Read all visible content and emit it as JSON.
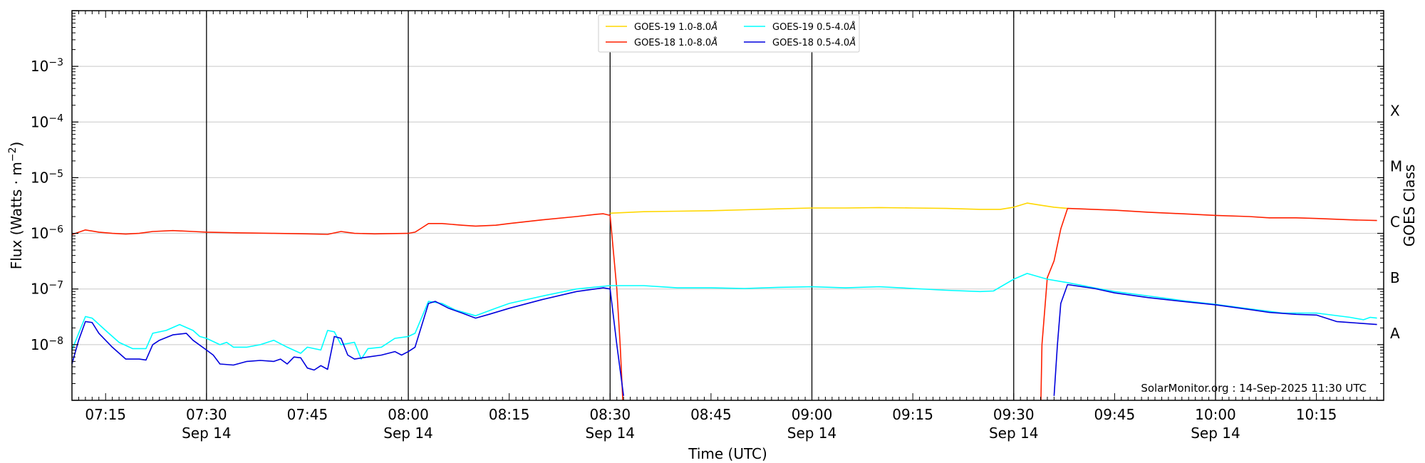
{
  "chart_data": {
    "type": "line",
    "xlabel": "Time (UTC)",
    "ylabel_main": "Flux (Watts · m",
    "ylabel_exp": "−2",
    "ylabel_close": ")",
    "y2label": "GOES Class",
    "y_scale": "log",
    "ylim": [
      1e-09,
      0.01
    ],
    "xlim": [
      "07:10",
      "10:25"
    ],
    "date": "Sep 14",
    "grid": "horizontal",
    "legend_position": "top-center",
    "credit": "SolarMonitor.org : 14-Sep-2025 11:30 UTC",
    "x_ticks": [
      "07:15",
      "07:30",
      "07:45",
      "08:00",
      "08:15",
      "08:30",
      "08:45",
      "09:00",
      "09:15",
      "09:30",
      "09:45",
      "10:00",
      "10:15"
    ],
    "x_major_ticks": [
      "07:30",
      "08:00",
      "08:30",
      "09:00",
      "09:30",
      "10:00"
    ],
    "x_major_sublabel": "Sep 14",
    "y_ticks": [
      {
        "exp": -8,
        "base": "10",
        "sup": "−8"
      },
      {
        "exp": -7,
        "base": "10",
        "sup": "−7"
      },
      {
        "exp": -6,
        "base": "10",
        "sup": "−6"
      },
      {
        "exp": -5,
        "base": "10",
        "sup": "−5"
      },
      {
        "exp": -4,
        "base": "10",
        "sup": "−4"
      },
      {
        "exp": -3,
        "base": "10",
        "sup": "−3"
      }
    ],
    "goes_classes": [
      {
        "label": "A",
        "flux": 1.6e-08
      },
      {
        "label": "B",
        "flux": 1.6e-07
      },
      {
        "label": "C",
        "flux": 1.6e-06
      },
      {
        "label": "M",
        "flux": 1.6e-05
      },
      {
        "label": "X",
        "flux": 0.00016
      }
    ],
    "series": [
      {
        "name": "GOES-19 1.0-8.0Å",
        "color": "#ffd700",
        "points": [
          [
            "08:30",
            2.3e-06
          ],
          [
            "08:35",
            2.45e-06
          ],
          [
            "08:40",
            2.5e-06
          ],
          [
            "08:45",
            2.55e-06
          ],
          [
            "08:50",
            2.65e-06
          ],
          [
            "08:55",
            2.75e-06
          ],
          [
            "09:00",
            2.85e-06
          ],
          [
            "09:05",
            2.85e-06
          ],
          [
            "09:10",
            2.9e-06
          ],
          [
            "09:15",
            2.85e-06
          ],
          [
            "09:20",
            2.8e-06
          ],
          [
            "09:25",
            2.7e-06
          ],
          [
            "09:28",
            2.7e-06
          ],
          [
            "09:30",
            2.95e-06
          ],
          [
            "09:32",
            3.5e-06
          ],
          [
            "09:34",
            3.2e-06
          ],
          [
            "09:36",
            2.95e-06
          ],
          [
            "09:38",
            2.8e-06
          ]
        ]
      },
      {
        "name": "GOES-18 1.0-8.0Å",
        "color": "#ff2000",
        "points": [
          [
            "07:10",
            9.5e-07
          ],
          [
            "07:12",
            1.15e-06
          ],
          [
            "07:14",
            1.05e-06
          ],
          [
            "07:16",
            1e-06
          ],
          [
            "07:18",
            9.7e-07
          ],
          [
            "07:20",
            1e-06
          ],
          [
            "07:22",
            1.08e-06
          ],
          [
            "07:25",
            1.12e-06
          ],
          [
            "07:28",
            1.08e-06
          ],
          [
            "07:30",
            1.05e-06
          ],
          [
            "07:35",
            1.02e-06
          ],
          [
            "07:40",
            1e-06
          ],
          [
            "07:45",
            9.8e-07
          ],
          [
            "07:48",
            9.6e-07
          ],
          [
            "07:50",
            1.08e-06
          ],
          [
            "07:52",
            1e-06
          ],
          [
            "07:55",
            9.8e-07
          ],
          [
            "08:00",
            1e-06
          ],
          [
            "08:01",
            1.05e-06
          ],
          [
            "08:02",
            1.25e-06
          ],
          [
            "08:03",
            1.5e-06
          ],
          [
            "08:05",
            1.5e-06
          ],
          [
            "08:08",
            1.4e-06
          ],
          [
            "08:10",
            1.35e-06
          ],
          [
            "08:13",
            1.4e-06
          ],
          [
            "08:15",
            1.5e-06
          ],
          [
            "08:20",
            1.75e-06
          ],
          [
            "08:25",
            2e-06
          ],
          [
            "08:28",
            2.2e-06
          ],
          [
            "08:29",
            2.25e-06
          ],
          [
            "08:30",
            2.1e-06
          ],
          [
            "08:31",
            1e-07
          ],
          [
            "08:31.5",
            1e-08
          ],
          [
            "08:32",
            5e-10
          ]
        ]
      },
      {
        "name": "GOES-18 1.0-8.0Å (recovery)",
        "color": "#ff2000",
        "points": [
          [
            "09:34",
            5e-10
          ],
          [
            "09:34.2",
            1e-08
          ],
          [
            "09:35",
            1.6e-07
          ],
          [
            "09:36",
            3.2e-07
          ],
          [
            "09:37",
            1.2e-06
          ],
          [
            "09:38",
            2.8e-06
          ],
          [
            "09:45",
            2.6e-06
          ],
          [
            "09:50",
            2.4e-06
          ],
          [
            "09:55",
            2.25e-06
          ],
          [
            "10:00",
            2.1e-06
          ],
          [
            "10:05",
            2e-06
          ],
          [
            "10:08",
            1.9e-06
          ],
          [
            "10:12",
            1.9e-06
          ],
          [
            "10:15",
            1.85e-06
          ],
          [
            "10:20",
            1.75e-06
          ],
          [
            "10:24",
            1.7e-06
          ]
        ]
      },
      {
        "name": "GOES-19 0.5-4.0Å",
        "color": "#00ffff",
        "points": [
          [
            "07:10",
            8e-09
          ],
          [
            "07:11",
            1.6e-08
          ],
          [
            "07:12",
            3.2e-08
          ],
          [
            "07:13",
            3e-08
          ],
          [
            "07:15",
            1.8e-08
          ],
          [
            "07:17",
            1.1e-08
          ],
          [
            "07:19",
            8.5e-09
          ],
          [
            "07:21",
            8.5e-09
          ],
          [
            "07:22",
            1.6e-08
          ],
          [
            "07:24",
            1.8e-08
          ],
          [
            "07:26",
            2.3e-08
          ],
          [
            "07:28",
            1.8e-08
          ],
          [
            "07:29",
            1.4e-08
          ],
          [
            "07:30",
            1.3e-08
          ],
          [
            "07:32",
            1e-08
          ],
          [
            "07:33",
            1.1e-08
          ],
          [
            "07:34",
            9e-09
          ],
          [
            "07:36",
            9e-09
          ],
          [
            "07:38",
            1e-08
          ],
          [
            "07:40",
            1.2e-08
          ],
          [
            "07:42",
            9e-09
          ],
          [
            "07:44",
            7e-09
          ],
          [
            "07:45",
            9e-09
          ],
          [
            "07:47",
            8e-09
          ],
          [
            "07:48",
            1.8e-08
          ],
          [
            "07:49",
            1.7e-08
          ],
          [
            "07:50",
            1e-08
          ],
          [
            "07:52",
            1.1e-08
          ],
          [
            "07:53",
            5.5e-09
          ],
          [
            "07:54",
            8.5e-09
          ],
          [
            "07:56",
            9e-09
          ],
          [
            "07:58",
            1.3e-08
          ],
          [
            "08:00",
            1.4e-08
          ],
          [
            "08:01",
            1.6e-08
          ],
          [
            "08:03",
            6e-08
          ],
          [
            "08:05",
            5.5e-08
          ],
          [
            "08:07",
            4.2e-08
          ],
          [
            "08:10",
            3.3e-08
          ],
          [
            "08:13",
            4.5e-08
          ],
          [
            "08:15",
            5.5e-08
          ],
          [
            "08:20",
            7.5e-08
          ],
          [
            "08:25",
            1e-07
          ],
          [
            "08:30",
            1.15e-07
          ],
          [
            "08:35",
            1.15e-07
          ],
          [
            "08:40",
            1.05e-07
          ],
          [
            "08:45",
            1.05e-07
          ],
          [
            "08:50",
            1.02e-07
          ],
          [
            "08:55",
            1.07e-07
          ],
          [
            "09:00",
            1.1e-07
          ],
          [
            "09:05",
            1.05e-07
          ],
          [
            "09:10",
            1.1e-07
          ],
          [
            "09:15",
            1.02e-07
          ],
          [
            "09:20",
            9.5e-08
          ],
          [
            "09:25",
            9e-08
          ],
          [
            "09:27",
            9.2e-08
          ],
          [
            "09:30",
            1.5e-07
          ],
          [
            "09:32",
            1.9e-07
          ],
          [
            "09:35",
            1.5e-07
          ],
          [
            "09:38",
            1.3e-07
          ],
          [
            "09:42",
            1.05e-07
          ],
          [
            "09:45",
            9e-08
          ],
          [
            "09:50",
            7.5e-08
          ],
          [
            "09:55",
            6.2e-08
          ],
          [
            "10:00",
            5.3e-08
          ],
          [
            "10:05",
            4.4e-08
          ],
          [
            "10:10",
            3.7e-08
          ],
          [
            "10:15",
            3.7e-08
          ],
          [
            "10:20",
            3.1e-08
          ],
          [
            "10:22",
            2.8e-08
          ],
          [
            "10:23",
            3.1e-08
          ],
          [
            "10:24",
            3e-08
          ]
        ]
      },
      {
        "name": "GOES-18 0.5-4.0Å",
        "color": "#0000dd",
        "points": [
          [
            "07:10",
            4.5e-09
          ],
          [
            "07:11",
            1.2e-08
          ],
          [
            "07:12",
            2.6e-08
          ],
          [
            "07:13",
            2.5e-08
          ],
          [
            "07:14",
            1.6e-08
          ],
          [
            "07:16",
            9e-09
          ],
          [
            "07:18",
            5.5e-09
          ],
          [
            "07:20",
            5.5e-09
          ],
          [
            "07:21",
            5.3e-09
          ],
          [
            "07:22",
            1e-08
          ],
          [
            "07:23",
            1.2e-08
          ],
          [
            "07:25",
            1.5e-08
          ],
          [
            "07:27",
            1.6e-08
          ],
          [
            "07:28",
            1.2e-08
          ],
          [
            "07:30",
            8e-09
          ],
          [
            "07:31",
            6.5e-09
          ],
          [
            "07:32",
            4.5e-09
          ],
          [
            "07:34",
            4.3e-09
          ],
          [
            "07:36",
            5e-09
          ],
          [
            "07:38",
            5.2e-09
          ],
          [
            "07:40",
            5e-09
          ],
          [
            "07:41",
            5.5e-09
          ],
          [
            "07:42",
            4.5e-09
          ],
          [
            "07:43",
            6e-09
          ],
          [
            "07:44",
            5.8e-09
          ],
          [
            "07:45",
            3.8e-09
          ],
          [
            "07:46",
            3.5e-09
          ],
          [
            "07:47",
            4.2e-09
          ],
          [
            "07:48",
            3.6e-09
          ],
          [
            "07:49",
            1.4e-08
          ],
          [
            "07:50",
            1.3e-08
          ],
          [
            "07:51",
            6.5e-09
          ],
          [
            "07:52",
            5.5e-09
          ],
          [
            "07:54",
            6e-09
          ],
          [
            "07:56",
            6.5e-09
          ],
          [
            "07:58",
            7.5e-09
          ],
          [
            "07:59",
            6.5e-09
          ],
          [
            "08:00",
            7.5e-09
          ],
          [
            "08:01",
            9e-09
          ],
          [
            "08:03",
            5.5e-08
          ],
          [
            "08:04",
            6e-08
          ],
          [
            "08:06",
            4.5e-08
          ],
          [
            "08:08",
            3.7e-08
          ],
          [
            "08:10",
            3e-08
          ],
          [
            "08:12",
            3.5e-08
          ],
          [
            "08:15",
            4.5e-08
          ],
          [
            "08:20",
            6.5e-08
          ],
          [
            "08:25",
            9e-08
          ],
          [
            "08:29",
            1.05e-07
          ],
          [
            "08:30",
            1e-07
          ],
          [
            "08:31",
            1e-08
          ],
          [
            "08:32",
            1.2e-09
          ]
        ]
      },
      {
        "name": "GOES-18 0.5-4.0Å (recovery)",
        "color": "#0000dd",
        "points": [
          [
            "09:36",
            1.2e-09
          ],
          [
            "09:36.5",
            1e-08
          ],
          [
            "09:37",
            5.5e-08
          ],
          [
            "09:38",
            1.2e-07
          ],
          [
            "09:42",
            1.02e-07
          ],
          [
            "09:45",
            8.5e-08
          ],
          [
            "09:50",
            7e-08
          ],
          [
            "09:55",
            6e-08
          ],
          [
            "10:00",
            5.2e-08
          ],
          [
            "10:05",
            4.3e-08
          ],
          [
            "10:08",
            3.8e-08
          ],
          [
            "10:12",
            3.5e-08
          ],
          [
            "10:15",
            3.4e-08
          ],
          [
            "10:18",
            2.6e-08
          ],
          [
            "10:20",
            2.5e-08
          ],
          [
            "10:24",
            2.3e-08
          ]
        ]
      }
    ],
    "legend": [
      {
        "label": "GOES-19 1.0-8.0",
        "angstrom": "Å",
        "color": "#ffd700",
        "col": 0,
        "row": 0
      },
      {
        "label": "GOES-18 1.0-8.0",
        "angstrom": "Å",
        "color": "#ff2000",
        "col": 0,
        "row": 1
      },
      {
        "label": "GOES-19 0.5-4.0",
        "angstrom": "Å",
        "color": "#00ffff",
        "col": 1,
        "row": 0
      },
      {
        "label": "GOES-18 0.5-4.0",
        "angstrom": "Å",
        "color": "#0000dd",
        "col": 1,
        "row": 1
      }
    ]
  }
}
